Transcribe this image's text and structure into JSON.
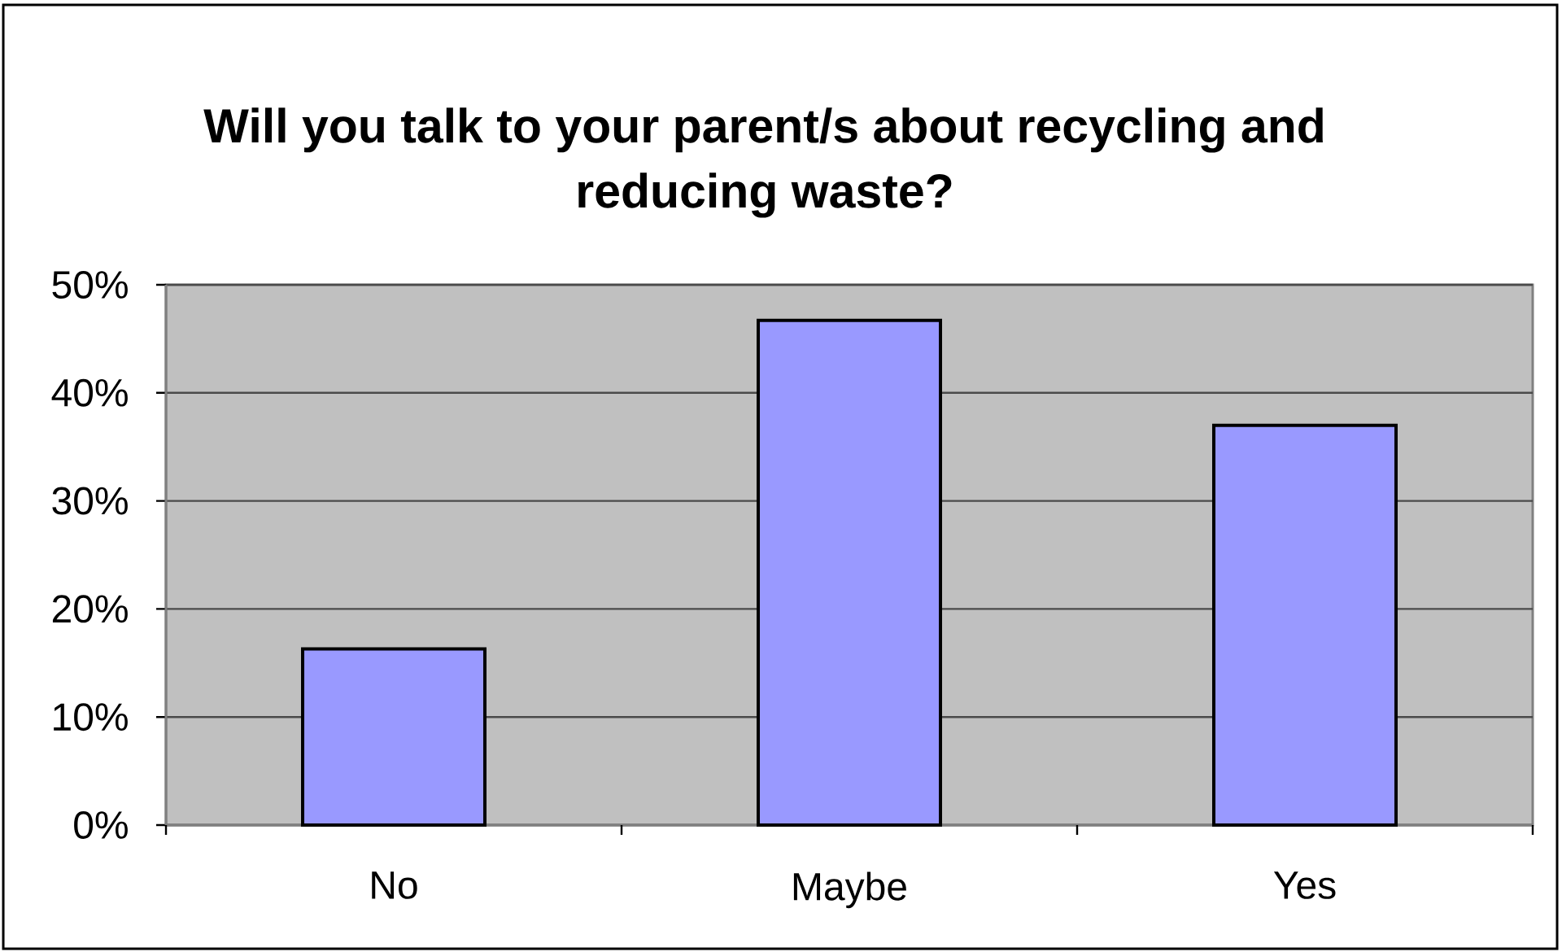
{
  "chart_data": {
    "type": "bar",
    "title": "Will you talk to your parent/s about recycling and reducing waste?",
    "categories": [
      "No",
      "Maybe",
      "Yes"
    ],
    "values": [
      16.3,
      46.7,
      37.0
    ],
    "color": "#9999ff",
    "ylim": [
      0,
      50
    ],
    "yticks": [
      {
        "value": 0,
        "label": "0%"
      },
      {
        "value": 10,
        "label": "10%"
      },
      {
        "value": 20,
        "label": "20%"
      },
      {
        "value": 30,
        "label": "30%"
      },
      {
        "value": 40,
        "label": "40%"
      },
      {
        "value": 50,
        "label": "50%"
      }
    ],
    "grid": "y"
  }
}
